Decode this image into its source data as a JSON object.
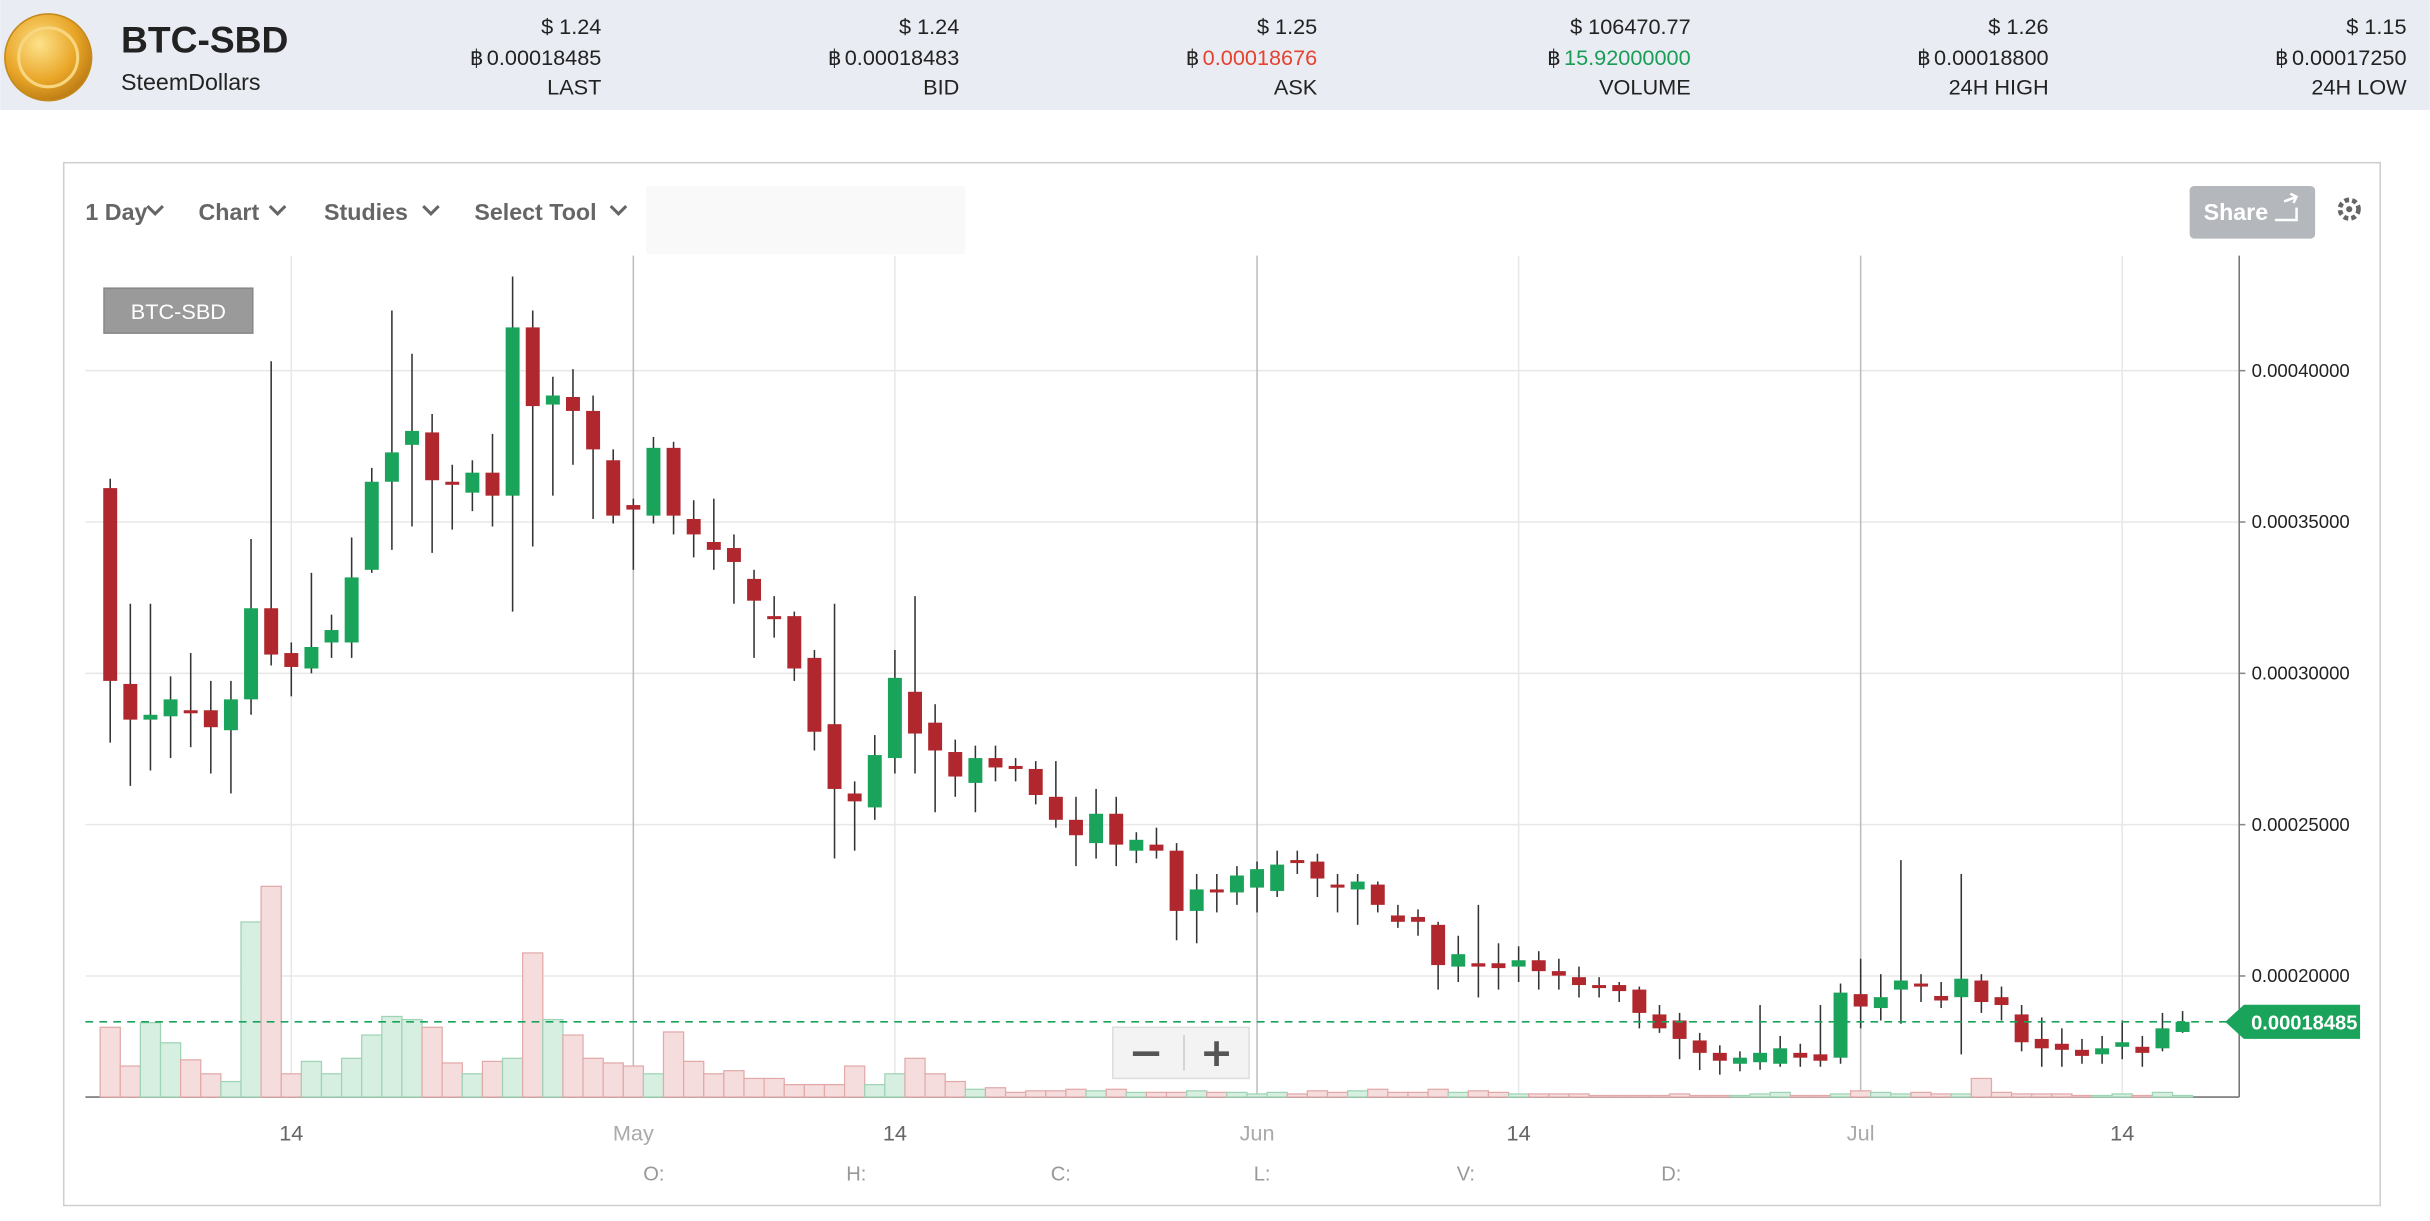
{
  "header": {
    "symbol": "BTC-SBD",
    "name": "SteemDollars",
    "btc_symbol": "฿",
    "stats": [
      {
        "usd": "$ 1.24",
        "btc": "0.00018485",
        "label": "LAST",
        "btc_color": "#222222"
      },
      {
        "usd": "$ 1.24",
        "btc": "0.00018483",
        "label": "BID",
        "btc_color": "#222222"
      },
      {
        "usd": "$ 1.25",
        "btc": "0.00018676",
        "label": "ASK",
        "btc_color": "#e5432f"
      },
      {
        "usd": "$ 106470.77",
        "btc": "15.92000000",
        "label": "VOLUME",
        "btc_color": "#1a9d55"
      },
      {
        "usd": "$ 1.26",
        "btc": "0.00018800",
        "label": "24H HIGH",
        "btc_color": "#222222"
      },
      {
        "usd": "$ 1.15",
        "btc": "0.00017250",
        "label": "24H LOW",
        "btc_color": "#222222"
      }
    ]
  },
  "toolbar": {
    "items": [
      "1 Day",
      "Chart",
      "Studies",
      "Select Tool"
    ],
    "share": "Share"
  },
  "readout": [
    "O:",
    "H:",
    "C:",
    "L:",
    "V:",
    "D:"
  ],
  "chart_data": {
    "type": "candlestick",
    "categories": [
      null,
      null,
      null,
      null,
      null,
      null,
      null,
      null,
      null,
      "14",
      null,
      null,
      null,
      null,
      null,
      null,
      null,
      null,
      null,
      null,
      null,
      null,
      null,
      null,
      null,
      null,
      "May",
      null,
      null,
      null,
      null,
      null,
      null,
      null,
      null,
      null,
      null,
      null,
      null,
      "14",
      null,
      null,
      null,
      null,
      null,
      null,
      null,
      null,
      null,
      null,
      null,
      null,
      null,
      null,
      null,
      null,
      null,
      "Jun",
      null,
      null,
      null,
      null,
      null,
      null,
      null,
      null,
      null,
      null,
      null,
      null,
      "14",
      null,
      null,
      null,
      null,
      null,
      null,
      null,
      null,
      null,
      null,
      null,
      null,
      null,
      null,
      null,
      null,
      "Jul",
      null,
      null,
      null,
      null,
      null,
      null,
      null,
      null,
      null,
      null,
      null,
      null,
      "14",
      null,
      null,
      null
    ],
    "series": [
      {
        "name": "BTC-SBD",
        "up_color": "#1aa35a",
        "down_color": "#b0282d",
        "open": [
          0.0003612,
          0.0002965,
          0.0002847,
          0.0002858,
          0.0002878,
          0.0002878,
          0.0002812,
          0.0002914,
          0.0003215,
          0.0003067,
          0.0003016,
          0.0003102,
          0.0003102,
          0.0003342,
          0.0003633,
          0.0003755,
          0.0003796,
          0.0003633,
          0.0003597,
          0.0003663,
          0.0003587,
          0.0004143,
          0.0003888,
          0.0003913,
          0.0003867,
          0.0003704,
          0.0003556,
          0.0003521,
          0.0003745,
          0.000351,
          0.0003434,
          0.0003414,
          0.0003312,
          0.0003189,
          0.0003189,
          0.0003051,
          0.0002832,
          0.0002603,
          0.0002557,
          0.000272,
          0.0002939,
          0.0002837,
          0.000274,
          0.0002638,
          0.000272,
          0.0002694,
          0.0002684,
          0.0002592,
          0.0002516,
          0.0002439,
          0.0002536,
          0.0002414,
          0.0002434,
          0.0002414,
          0.0002215,
          0.0002286,
          0.0002276,
          0.0002292,
          0.0002281,
          0.0002383,
          0.0002378,
          0.0002302,
          0.0002286,
          0.0002302,
          0.00022,
          0.0002195,
          0.0002169,
          0.0002031,
          0.0002042,
          0.0002042,
          0.0002031,
          0.0002052,
          0.0002016,
          0.0001996,
          0.000197,
          0.000197,
          0.0001955,
          0.0001873,
          0.0001853,
          0.0001787,
          0.0001746,
          0.000171,
          0.0001715,
          0.000171,
          0.0001746,
          0.0001741,
          0.000173,
          0.000194,
          0.0001894,
          0.0001955,
          0.0001975,
          0.0001934,
          0.000193,
          0.0001985,
          0.000193,
          0.0001873,
          0.0001792,
          0.0001776,
          0.0001756,
          0.0001741,
          0.0001766,
          0.0001766,
          0.0001761,
          0.0001815
        ],
        "high": [
          0.0003643,
          0.000323,
          0.000323,
          0.000299,
          0.0003067,
          0.0002975,
          0.0002975,
          0.0003444,
          0.0004031,
          0.0003102,
          0.0003332,
          0.0003194,
          0.0003449,
          0.0003679,
          0.0004199,
          0.0004056,
          0.0003857,
          0.0003689,
          0.0003704,
          0.0003791,
          0.0004311,
          0.0004199,
          0.000398,
          0.0004005,
          0.0003918,
          0.000374,
          0.0003577,
          0.0003781,
          0.0003765,
          0.0003572,
          0.0003577,
          0.0003459,
          0.0003342,
          0.0003255,
          0.0003204,
          0.0003077,
          0.000323,
          0.0002643,
          0.0002796,
          0.0003077,
          0.0003255,
          0.0002898,
          0.0002781,
          0.0002761,
          0.0002761,
          0.000272,
          0.000271,
          0.000271,
          0.0002592,
          0.0002618,
          0.0002592,
          0.0002475,
          0.000249,
          0.0002439,
          0.0002337,
          0.0002337,
          0.0002363,
          0.0002378,
          0.0002414,
          0.0002414,
          0.0002404,
          0.0002337,
          0.0002337,
          0.0002312,
          0.0002235,
          0.000222,
          0.0002179,
          0.0002133,
          0.0002235,
          0.0002108,
          0.0002098,
          0.0002082,
          0.0002057,
          0.0002031,
          0.0001996,
          0.000198,
          0.0001965,
          0.0001904,
          0.0001878,
          0.0001812,
          0.0001771,
          0.0001751,
          0.0001904,
          0.0001802,
          0.0001776,
          0.0001904,
          0.0001975,
          0.0002057,
          0.0002006,
          0.0002383,
          0.0002006,
          0.000198,
          0.0002337,
          0.0002006,
          0.0001965,
          0.0001904,
          0.0001863,
          0.0001827,
          0.0001792,
          0.0001802,
          0.0001853,
          0.0001802,
          0.0001878,
          0.0001884
        ],
        "low": [
          0.0002771,
          0.0002628,
          0.0002679,
          0.000272,
          0.0002756,
          0.0002669,
          0.0002603,
          0.0002863,
          0.0003026,
          0.0002924,
          0.0003,
          0.0003051,
          0.0003051,
          0.0003332,
          0.0003408,
          0.0003485,
          0.0003398,
          0.0003475,
          0.0003536,
          0.0003485,
          0.0003204,
          0.0003419,
          0.0003587,
          0.0003689,
          0.000351,
          0.0003495,
          0.0003342,
          0.0003495,
          0.0003459,
          0.0003383,
          0.0003342,
          0.000323,
          0.0003051,
          0.0003118,
          0.0002975,
          0.0002745,
          0.0002388,
          0.0002414,
          0.0002516,
          0.0002669,
          0.0002669,
          0.0002541,
          0.0002592,
          0.0002541,
          0.0002643,
          0.0002643,
          0.0002567,
          0.000249,
          0.0002363,
          0.0002388,
          0.0002363,
          0.0002373,
          0.0002388,
          0.0002118,
          0.0002108,
          0.000221,
          0.0002235,
          0.000221,
          0.0002261,
          0.0002337,
          0.0002261,
          0.000221,
          0.0002169,
          0.000221,
          0.0002159,
          0.0002133,
          0.0001955,
          0.000198,
          0.0001929,
          0.0001955,
          0.000198,
          0.0001955,
          0.0001955,
          0.0001929,
          0.0001929,
          0.0001914,
          0.0001827,
          0.0001812,
          0.0001725,
          0.0001689,
          0.0001674,
          0.0001685,
          0.000169,
          0.00017,
          0.00017,
          0.00017,
          0.000171,
          0.0001827,
          0.0001853,
          0.0001842,
          0.0001914,
          0.0001894,
          0.0001741,
          0.0001878,
          0.0001853,
          0.0001751,
          0.00017,
          0.00017,
          0.000171,
          0.000171,
          0.0001725,
          0.00017,
          0.0001751,
          0.0001812
        ],
        "close": [
          0.0002975,
          0.0002847,
          0.0002863,
          0.0002914,
          0.0002868,
          0.0002822,
          0.0002914,
          0.0003215,
          0.0003062,
          0.0003021,
          0.0003087,
          0.0003143,
          0.0003317,
          0.0003633,
          0.000373,
          0.0003801,
          0.0003638,
          0.0003623,
          0.0003663,
          0.0003587,
          0.0004143,
          0.0003883,
          0.0003918,
          0.0003867,
          0.000374,
          0.0003521,
          0.0003541,
          0.0003745,
          0.0003521,
          0.0003459,
          0.0003408,
          0.0003368,
          0.000324,
          0.0003179,
          0.0003016,
          0.0002807,
          0.0002618,
          0.0002577,
          0.000273,
          0.0002985,
          0.0002801,
          0.0002745,
          0.0002659,
          0.000272,
          0.0002689,
          0.0002684,
          0.0002598,
          0.0002516,
          0.0002465,
          0.0002536,
          0.0002434,
          0.000245,
          0.0002414,
          0.0002215,
          0.0002286,
          0.0002276,
          0.0002332,
          0.0002353,
          0.0002368,
          0.0002373,
          0.0002322,
          0.0002292,
          0.0002312,
          0.0002235,
          0.0002179,
          0.0002179,
          0.0002036,
          0.0002072,
          0.0002031,
          0.0002026,
          0.0002052,
          0.0002016,
          0.0002001,
          0.000197,
          0.000196,
          0.000195,
          0.0001878,
          0.0001827,
          0.0001792,
          0.0001746,
          0.000172,
          0.000173,
          0.0001746,
          0.0001761,
          0.000173,
          0.000172,
          0.0001945,
          0.0001899,
          0.000193,
          0.0001985,
          0.0001965,
          0.0001919,
          0.0001991,
          0.0001914,
          0.0001904,
          0.0001781,
          0.0001761,
          0.0001756,
          0.0001736,
          0.0001761,
          0.0001781,
          0.0001746,
          0.0001827,
          0.00018485
        ],
        "volume": [
          45,
          20,
          48,
          35,
          24,
          15,
          10,
          113,
          136,
          15,
          23,
          15,
          25,
          40,
          52,
          50,
          45,
          22,
          15,
          23,
          25,
          93,
          50,
          40,
          25,
          22,
          20,
          15,
          42,
          23,
          15,
          17,
          12,
          12,
          8,
          8,
          8,
          20,
          8,
          15,
          25,
          15,
          10,
          5,
          6,
          3,
          4,
          4,
          5,
          4,
          5,
          3,
          3,
          3,
          4,
          3,
          3,
          2,
          3,
          2,
          4,
          3,
          4,
          5,
          3,
          3,
          5,
          3,
          4,
          3,
          2,
          2,
          2,
          2,
          1,
          1,
          1,
          1,
          2,
          1,
          1,
          1,
          2,
          3,
          1,
          1,
          2,
          4,
          3,
          2,
          3,
          2,
          2,
          12,
          3,
          2,
          2,
          2,
          1,
          1,
          2,
          1,
          3,
          1
        ]
      }
    ],
    "ylim": [
      0.00016,
      0.000438
    ],
    "yticks": [
      {
        "value": 0.0002,
        "label": "0.00020000"
      },
      {
        "value": 0.00025,
        "label": "0.00025000"
      },
      {
        "value": 0.0003,
        "label": "0.00030000"
      },
      {
        "value": 0.00035,
        "label": "0.00035000"
      },
      {
        "value": 0.0004,
        "label": "0.00040000"
      }
    ],
    "volume_ylim": [
      0,
      150
    ],
    "last_price": 0.00018485,
    "last_color": "#1aa35a",
    "grid": true
  }
}
